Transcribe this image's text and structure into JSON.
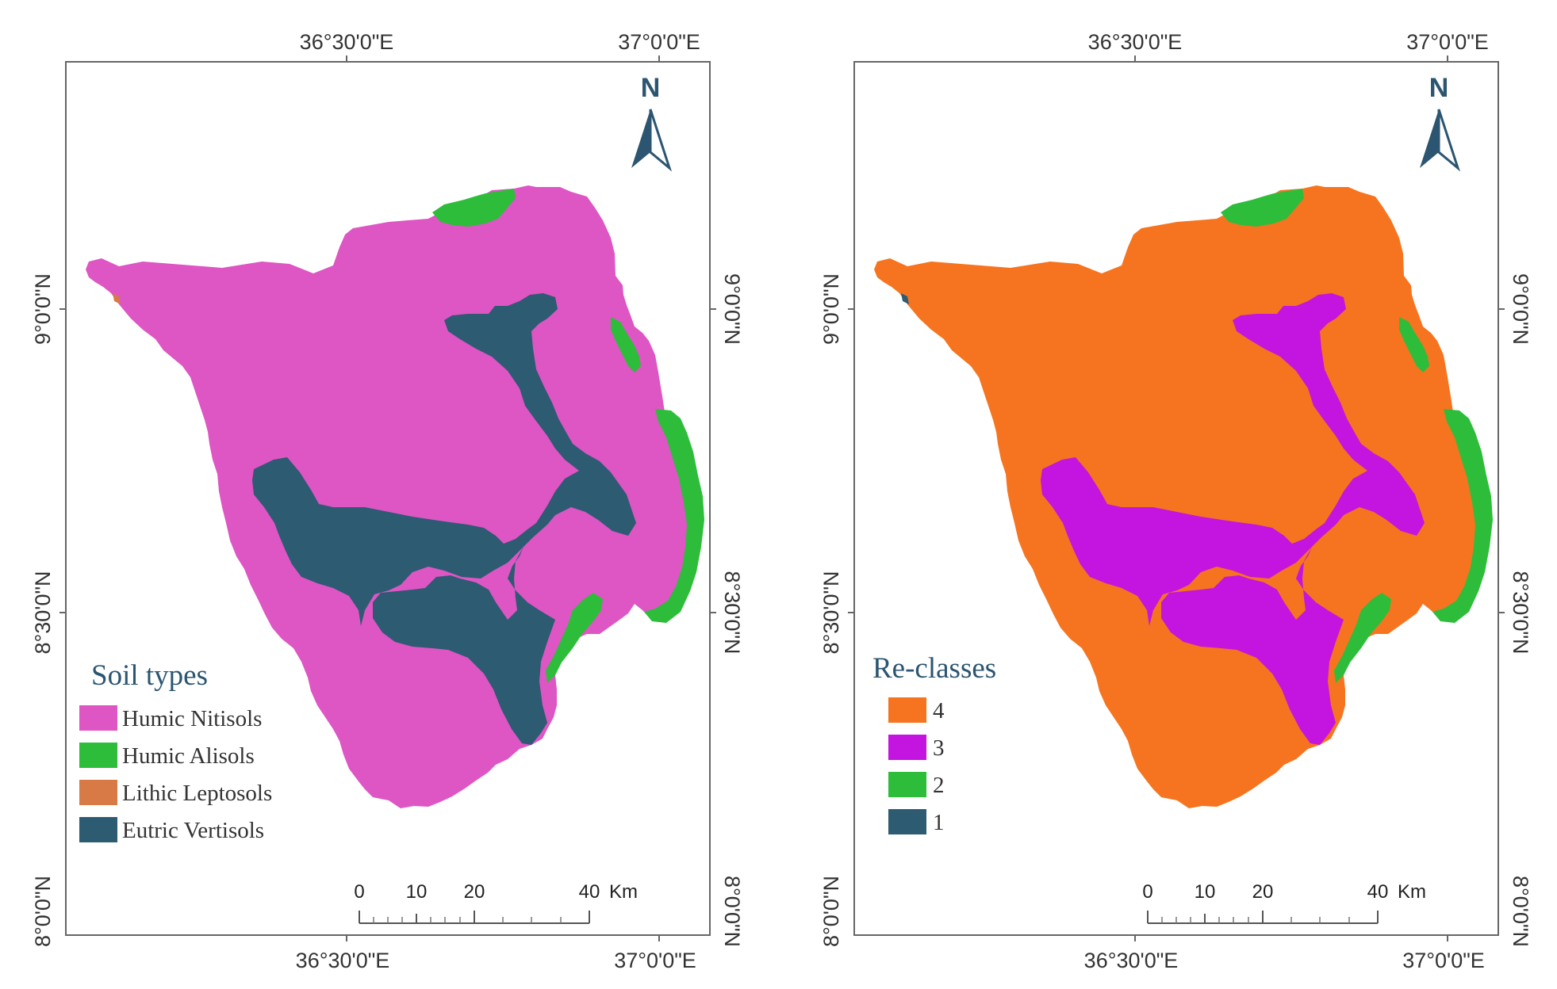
{
  "maps": [
    {
      "lon_labels": [
        "36°30'0\"E",
        "37°0'0\"E"
      ],
      "lat_labels": [
        "9°0'0\"N",
        "8°30'0\"N",
        "8°0'0\"N"
      ],
      "north": "N",
      "scale": {
        "ticks": [
          "0",
          "10",
          "20",
          "40"
        ],
        "unit": "Km"
      },
      "legend": {
        "title": "Soil types",
        "items": [
          {
            "label": "Humic Nitisols",
            "color": "#de55c4"
          },
          {
            "label": "Humic Alisols",
            "color": "#2dbd3a"
          },
          {
            "label": "Lithic Leptosols",
            "color": "#d87a46"
          },
          {
            "label": "Eutric Vertisols",
            "color": "#2c5b72"
          }
        ]
      },
      "colors": {
        "base": "#de55c4",
        "valley": "#2c5b72",
        "edge": "#2dbd3a"
      }
    },
    {
      "lon_labels": [
        "36°30'0\"E",
        "37°0'0\"E"
      ],
      "lat_labels": [
        "9°0'0\"N",
        "8°30'0\"N",
        "8°0'0\"N"
      ],
      "north": "N",
      "scale": {
        "ticks": [
          "0",
          "10",
          "20",
          "40"
        ],
        "unit": "Km"
      },
      "legend": {
        "title": "Re-classes",
        "items": [
          {
            "label": "4",
            "color": "#f6741f"
          },
          {
            "label": "3",
            "color": "#c414e0"
          },
          {
            "label": "2",
            "color": "#2dbd3a"
          },
          {
            "label": "1",
            "color": "#2c5b72"
          }
        ]
      },
      "colors": {
        "base": "#f6741f",
        "valley": "#c414e0",
        "edge": "#2dbd3a"
      }
    }
  ]
}
